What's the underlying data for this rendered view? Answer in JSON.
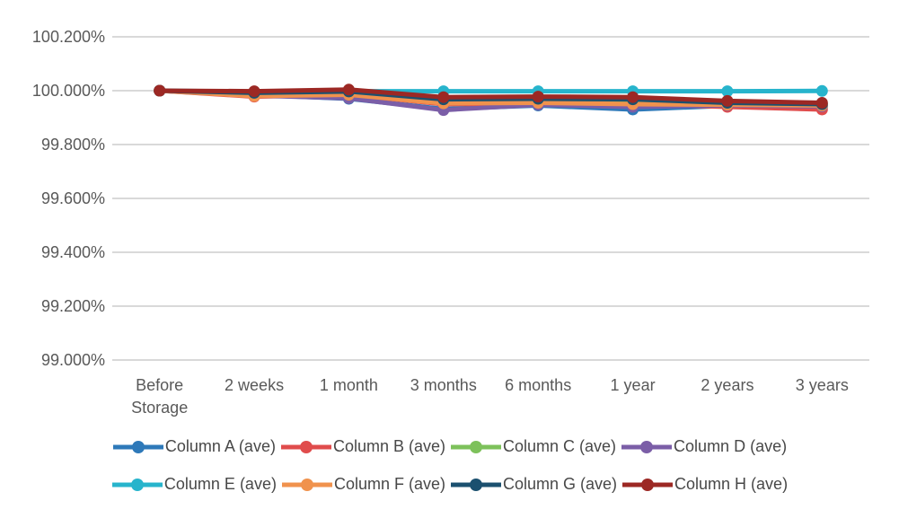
{
  "page": {
    "title": "",
    "background": "#FFFFFF"
  },
  "colors": {
    "grid": "#D9D9D9",
    "axis_text": "#595959",
    "legend_text": "#484848"
  },
  "chart_data": {
    "type": "line",
    "title": "",
    "xlabel": "",
    "ylabel": "",
    "grid": "horizontal",
    "legend_position": "bottom",
    "legend_rows": 2,
    "ylim": [
      99.0,
      100.2
    ],
    "categories": [
      "Before Storage",
      "2 weeks",
      "1 month",
      "3 months",
      "6 months",
      "1 year",
      "2 years",
      "3 years"
    ],
    "y_ticks": [
      {
        "value": 100.2,
        "label": "100.200%"
      },
      {
        "value": 100.0,
        "label": "100.000%"
      },
      {
        "value": 99.8,
        "label": "99.800%"
      },
      {
        "value": 99.6,
        "label": "99.600%"
      },
      {
        "value": 99.4,
        "label": "99.400%"
      },
      {
        "value": 99.2,
        "label": "99.200%"
      },
      {
        "value": 99.0,
        "label": "99.000%"
      }
    ],
    "series": [
      {
        "name": "Column A (ave)",
        "color": "#2E79B9",
        "values": [
          100.0,
          99.985,
          99.97,
          99.932,
          99.945,
          99.93,
          99.944,
          99.94
        ]
      },
      {
        "name": "Column B (ave)",
        "color": "#E04C4C",
        "values": [
          100.0,
          99.978,
          99.985,
          99.95,
          99.952,
          99.95,
          99.94,
          99.93
        ]
      },
      {
        "name": "Column C (ave)",
        "color": "#7DC15B",
        "values": [
          100.0,
          99.986,
          99.99,
          99.958,
          99.96,
          99.955,
          99.952,
          99.95
        ]
      },
      {
        "name": "Column D (ave)",
        "color": "#7B5EA7",
        "values": [
          100.0,
          99.982,
          99.972,
          99.928,
          99.948,
          99.94,
          99.946,
          99.942
        ]
      },
      {
        "name": "Column E (ave)",
        "color": "#27B4CC",
        "values": [
          100.0,
          99.996,
          99.998,
          99.998,
          99.998,
          99.998,
          99.998,
          99.999
        ]
      },
      {
        "name": "Column F (ave)",
        "color": "#F0924D",
        "values": [
          100.0,
          99.98,
          99.985,
          99.953,
          99.955,
          99.95,
          99.948,
          99.945
        ]
      },
      {
        "name": "Column G (ave)",
        "color": "#1B506F",
        "values": [
          100.0,
          99.992,
          99.997,
          99.968,
          99.97,
          99.968,
          99.955,
          99.95
        ]
      },
      {
        "name": "Column H (ave)",
        "color": "#9C2824",
        "values": [
          100.0,
          99.998,
          100.004,
          99.976,
          99.978,
          99.976,
          99.962,
          99.955
        ]
      }
    ]
  }
}
